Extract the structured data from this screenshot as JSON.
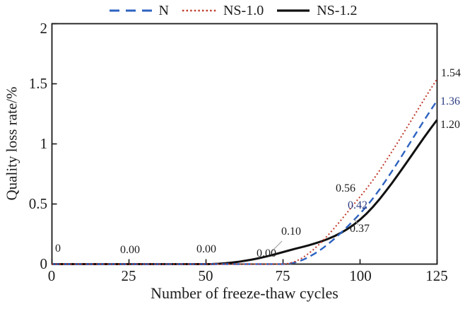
{
  "chart_data": {
    "type": "line",
    "title": "",
    "xlabel": "Number of freeze-thaw cycles",
    "ylabel": "Quality loss rate/%",
    "xlim": [
      0,
      125
    ],
    "ylim": [
      0,
      2
    ],
    "grid": false,
    "legend_position": "top-center",
    "x": [
      0,
      25,
      50,
      75,
      100,
      125
    ],
    "series": [
      {
        "name": "N",
        "values": [
          0,
          0.0,
          0.0,
          0.0,
          0.42,
          1.36
        ],
        "color": "#2e63c0",
        "style": "dashed"
      },
      {
        "name": "NS-1.0",
        "values": [
          0,
          0.0,
          0.0,
          0.0,
          0.56,
          1.54
        ],
        "color": "#c03a2b",
        "style": "dotted"
      },
      {
        "name": "NS-1.2",
        "values": [
          0,
          0.0,
          0.0,
          0.1,
          0.37,
          1.2
        ],
        "color": "#111111",
        "style": "solid"
      }
    ],
    "xticks": [
      "0",
      "25",
      "50",
      "75",
      "100",
      "125"
    ],
    "yticks": [
      "0",
      "0.5",
      "1",
      "1.5",
      "2"
    ],
    "annotations": [
      {
        "text": "0",
        "color": "#1c1c1c"
      },
      {
        "text": "0.00",
        "color": "#1c1c1c"
      },
      {
        "text": "0.00",
        "color": "#1c1c1c"
      },
      {
        "text": "0.00",
        "color": "#1c1c1c"
      },
      {
        "text": "0.10",
        "color": "#1c1c1c"
      },
      {
        "text": "0.37",
        "color": "#1c1c1c"
      },
      {
        "text": "0.42",
        "color": "#2b3a80"
      },
      {
        "text": "0.56",
        "color": "#1c1c1c"
      },
      {
        "text": "1.54",
        "color": "#1c1c1c"
      },
      {
        "text": "1.36",
        "color": "#2b3a80"
      },
      {
        "text": "1.20",
        "color": "#1c1c1c"
      }
    ]
  }
}
